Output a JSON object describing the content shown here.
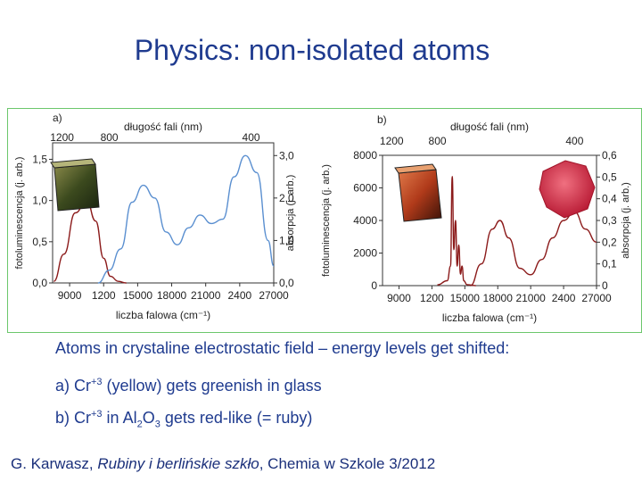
{
  "slide": {
    "title": "Physics: non-isolated atoms",
    "line1": "Atoms in crystaline electrostatic field – energy levels get shifted:",
    "line2": {
      "prefix": "a) Cr",
      "sup": "+3",
      "rest": " (yellow) gets greenish in glass"
    },
    "line3": {
      "prefix": "b) Cr",
      "sup": "+3",
      "mid": " in Al",
      "sub1": "2",
      "mid2": "O",
      "sub2": "3",
      "rest": "  gets red-like (= ruby)"
    },
    "citation": {
      "author": "G. Karwasz, ",
      "work": "Rubiny i berlińskie szkło",
      "source": ", Chemia w Szkole 3/2012"
    }
  },
  "chart_data": [
    {
      "type": "line",
      "panel_label": "a)",
      "top_axis_label": "długość fali (nm)",
      "top_ticks": [
        "1200",
        "800",
        "400"
      ],
      "xlabel": "liczba falowa (cm⁻¹)",
      "x_ticks": [
        "9000",
        "1200",
        "15000",
        "18000",
        "21000",
        "2400",
        "27000"
      ],
      "xlim": [
        7500,
        27000
      ],
      "ylabel_left": "fotoluminescencja (j. arb.)",
      "y_left_ticks": [
        "0,0",
        "0,5",
        "1,0",
        "1,5"
      ],
      "ylim_left": [
        0,
        1.7
      ],
      "ylabel_right": "absorpcja (j. arb.)",
      "y_right_ticks": [
        "0,0",
        "1,0",
        "2,0",
        "3,0"
      ],
      "ylim_right": [
        0,
        3.3
      ],
      "series": [
        {
          "color": "#8b1a1a",
          "axis": "left",
          "x": [
            7600,
            8500,
            9500,
            10500,
            11300,
            12000,
            12600,
            13300,
            14000
          ],
          "y": [
            0.02,
            0.35,
            0.85,
            1.0,
            0.75,
            0.3,
            0.08,
            0.02,
            0.0
          ]
        },
        {
          "color": "#5a8fd0",
          "axis": "right",
          "x": [
            11500,
            12500,
            13500,
            14500,
            15500,
            16500,
            17500,
            18500,
            19500,
            20500,
            21500,
            22500,
            23500,
            24500,
            25500,
            26500,
            27000
          ],
          "y": [
            0.0,
            0.3,
            0.8,
            1.9,
            2.3,
            2.0,
            1.2,
            0.9,
            1.3,
            1.6,
            1.4,
            1.5,
            2.5,
            3.0,
            2.6,
            1.0,
            0.4
          ]
        }
      ]
    },
    {
      "type": "line",
      "panel_label": "b)",
      "top_axis_label": "długość fali (nm)",
      "top_ticks": [
        "1200",
        "800",
        "400"
      ],
      "xlabel": "liczba falowa (cm⁻¹)",
      "x_ticks": [
        "9000",
        "1200",
        "15000",
        "18000",
        "21000",
        "2400",
        "27000"
      ],
      "xlim": [
        7500,
        27000
      ],
      "ylabel_left": "fotoluminescencja (j. arb.)",
      "y_left_ticks": [
        "0",
        "2000",
        "4000",
        "6000",
        "8000"
      ],
      "ylim_left": [
        0,
        8000
      ],
      "ylabel_right": "absorpcja (j. arb.)",
      "y_right_ticks": [
        "0",
        "0,1",
        "0,2",
        "0,3",
        "0,4",
        "0,5",
        "0,6"
      ],
      "ylim_right": [
        0,
        0.6
      ],
      "series": [
        {
          "color": "#8b1a1a",
          "axis": "left",
          "x": [
            12500,
            13400,
            13700,
            13850,
            14000,
            14150,
            14300,
            14450,
            14600,
            14750,
            14900,
            15200,
            16000
          ],
          "y": [
            50,
            300,
            1200,
            6700,
            2200,
            4000,
            1200,
            2500,
            700,
            1200,
            300,
            60,
            0
          ]
        },
        {
          "color": "#8b1a1a",
          "axis": "right",
          "x": [
            15500,
            16500,
            17500,
            18200,
            19000,
            20000,
            21000,
            22000,
            23000,
            24000,
            25000,
            26000,
            27000
          ],
          "y": [
            0.0,
            0.1,
            0.26,
            0.3,
            0.22,
            0.08,
            0.05,
            0.12,
            0.22,
            0.3,
            0.34,
            0.26,
            0.2
          ]
        }
      ]
    }
  ]
}
